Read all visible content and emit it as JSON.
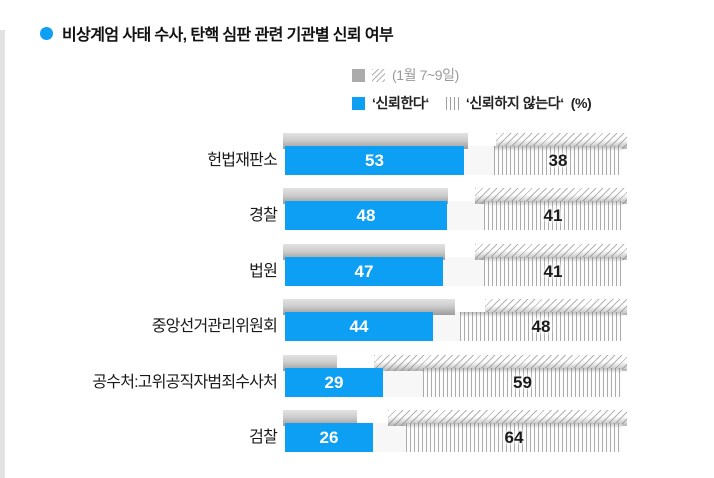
{
  "title": {
    "text": "비상계엄 사태 수사, 탄핵 심판 관련 기관별 신뢰 여부"
  },
  "legend": {
    "prev_period": "(1월 7~9일)",
    "trust": "‘신뢰한다‘",
    "distrust": "‘신뢰하지 않는다‘",
    "unit": "(%)"
  },
  "colors": {
    "bar_blue": "#0d9ff4",
    "shadow_gray": "#a6a6a6",
    "hatch_line": "#ababab",
    "legend_muted": "#9a9a9a",
    "text_dark": "#1a1a1a"
  },
  "chart_data": {
    "type": "bar",
    "orientation": "horizontal",
    "title": "비상계엄 사태 수사, 탄핵 심판 관련 기관별 신뢰 여부",
    "unit": "%",
    "xlim": [
      0,
      100
    ],
    "grid": false,
    "legend_position": "top-right",
    "categories": [
      "헌법재판소",
      "경찰",
      "법원",
      "중앙선거관리위원회",
      "공수처:고위공직자범죄수사처",
      "검찰"
    ],
    "series": [
      {
        "name": "신뢰한다",
        "period": "current",
        "style": "solid-blue",
        "align": "left",
        "labeled": true,
        "values": [
          53,
          48,
          47,
          44,
          29,
          26
        ]
      },
      {
        "name": "신뢰하지 않는다",
        "period": "current",
        "style": "vertical-hatch",
        "align": "right",
        "labeled": true,
        "values": [
          38,
          41,
          41,
          48,
          59,
          64
        ]
      },
      {
        "name": "신뢰한다 (1월 7~9일)",
        "period": "1월 7~9일",
        "style": "solid-gray-shadow",
        "align": "left",
        "labeled": false,
        "estimated": true,
        "values": [
          55,
          49,
          48,
          51,
          16,
          22
        ]
      },
      {
        "name": "신뢰하지 않는다 (1월 7~9일)",
        "period": "1월 7~9일",
        "style": "diagonal-hatch-shadow",
        "align": "right",
        "labeled": false,
        "estimated": true,
        "values": [
          39,
          45,
          45,
          42,
          75,
          71
        ]
      }
    ]
  }
}
